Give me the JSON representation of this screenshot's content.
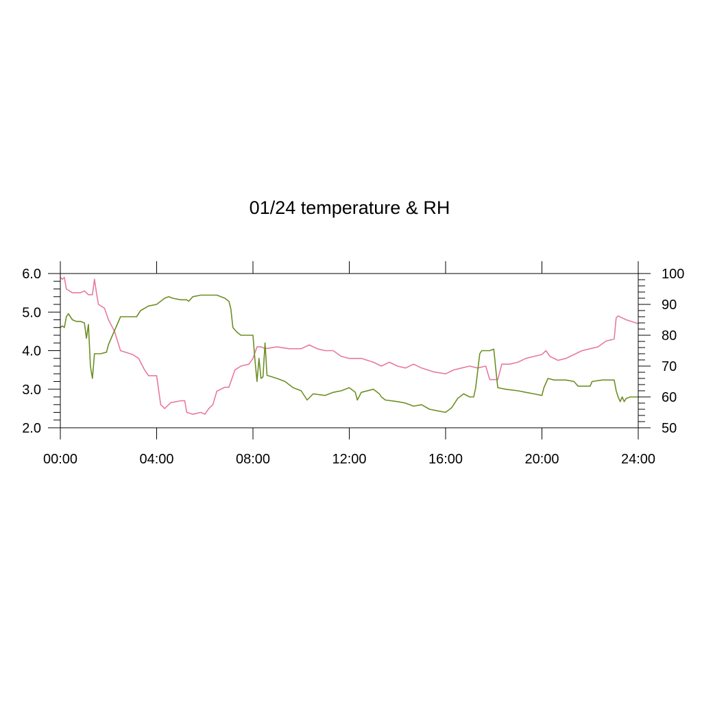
{
  "chart_data": {
    "type": "line",
    "title": "01/24 temperature & RH",
    "x_range": [
      "00:00",
      "24:00"
    ],
    "x_ticks": [
      "00:00",
      "04:00",
      "08:00",
      "12:00",
      "16:00",
      "20:00",
      "24:00"
    ],
    "y_left": {
      "range": [
        2.0,
        6.0
      ],
      "ticks": [
        "2.0",
        "3.0",
        "4.0",
        "5.0",
        "6.0"
      ]
    },
    "y_right": {
      "range": [
        50,
        100
      ],
      "ticks": [
        "50",
        "60",
        "70",
        "80",
        "90",
        "100"
      ]
    },
    "grid": false,
    "series": [
      {
        "axis": "left",
        "color": "#e8789e",
        "points": [
          [
            "00:00",
            5.9
          ],
          [
            "00:05",
            5.85
          ],
          [
            "00:10",
            5.9
          ],
          [
            "00:15",
            5.6
          ],
          [
            "00:30",
            5.5
          ],
          [
            "00:50",
            5.5
          ],
          [
            "01:00",
            5.55
          ],
          [
            "01:10",
            5.45
          ],
          [
            "01:20",
            5.45
          ],
          [
            "01:25",
            5.85
          ],
          [
            "01:30",
            5.5
          ],
          [
            "01:35",
            5.2
          ],
          [
            "01:50",
            5.1
          ],
          [
            "02:00",
            4.8
          ],
          [
            "02:15",
            4.5
          ],
          [
            "02:30",
            4.0
          ],
          [
            "02:45",
            3.95
          ],
          [
            "03:00",
            3.9
          ],
          [
            "03:15",
            3.8
          ],
          [
            "03:30",
            3.5
          ],
          [
            "03:40",
            3.35
          ],
          [
            "04:00",
            3.35
          ],
          [
            "04:10",
            2.6
          ],
          [
            "04:20",
            2.5
          ],
          [
            "04:35",
            2.65
          ],
          [
            "05:00",
            2.7
          ],
          [
            "05:10",
            2.7
          ],
          [
            "05:15",
            2.4
          ],
          [
            "05:30",
            2.35
          ],
          [
            "05:50",
            2.4
          ],
          [
            "06:00",
            2.35
          ],
          [
            "06:10",
            2.5
          ],
          [
            "06:20",
            2.6
          ],
          [
            "06:30",
            2.95
          ],
          [
            "06:50",
            3.05
          ],
          [
            "07:00",
            3.05
          ],
          [
            "07:15",
            3.5
          ],
          [
            "07:30",
            3.6
          ],
          [
            "07:50",
            3.65
          ],
          [
            "08:00",
            3.8
          ],
          [
            "08:10",
            4.1
          ],
          [
            "08:20",
            4.1
          ],
          [
            "08:30",
            4.05
          ],
          [
            "09:00",
            4.1
          ],
          [
            "09:30",
            4.05
          ],
          [
            "10:00",
            4.05
          ],
          [
            "10:20",
            4.15
          ],
          [
            "10:40",
            4.05
          ],
          [
            "11:00",
            4.0
          ],
          [
            "11:20",
            4.0
          ],
          [
            "11:40",
            3.85
          ],
          [
            "12:00",
            3.8
          ],
          [
            "12:30",
            3.8
          ],
          [
            "13:00",
            3.7
          ],
          [
            "13:20",
            3.6
          ],
          [
            "13:40",
            3.7
          ],
          [
            "14:00",
            3.6
          ],
          [
            "14:20",
            3.55
          ],
          [
            "14:40",
            3.65
          ],
          [
            "15:00",
            3.55
          ],
          [
            "15:30",
            3.45
          ],
          [
            "16:00",
            3.4
          ],
          [
            "16:20",
            3.5
          ],
          [
            "16:40",
            3.55
          ],
          [
            "17:00",
            3.6
          ],
          [
            "17:20",
            3.55
          ],
          [
            "17:40",
            3.6
          ],
          [
            "17:50",
            3.25
          ],
          [
            "18:00",
            3.25
          ],
          [
            "18:10",
            3.25
          ],
          [
            "18:20",
            3.65
          ],
          [
            "18:40",
            3.65
          ],
          [
            "19:00",
            3.7
          ],
          [
            "19:20",
            3.8
          ],
          [
            "19:40",
            3.85
          ],
          [
            "20:00",
            3.9
          ],
          [
            "20:10",
            4.0
          ],
          [
            "20:20",
            3.85
          ],
          [
            "20:40",
            3.75
          ],
          [
            "21:00",
            3.8
          ],
          [
            "21:20",
            3.9
          ],
          [
            "21:40",
            4.0
          ],
          [
            "22:00",
            4.05
          ],
          [
            "22:20",
            4.1
          ],
          [
            "22:40",
            4.25
          ],
          [
            "23:00",
            4.3
          ],
          [
            "23:05",
            4.85
          ],
          [
            "23:10",
            4.9
          ],
          [
            "23:20",
            4.85
          ],
          [
            "23:30",
            4.8
          ],
          [
            "23:45",
            4.75
          ],
          [
            "24:00",
            4.7
          ]
        ]
      },
      {
        "axis": "right",
        "color": "#6b8e23",
        "points": [
          [
            "00:00",
            82.5
          ],
          [
            "00:05",
            83.0
          ],
          [
            "00:10",
            82.5
          ],
          [
            "00:15",
            86.0
          ],
          [
            "00:20",
            87.0
          ],
          [
            "00:30",
            85.0
          ],
          [
            "00:40",
            84.5
          ],
          [
            "00:50",
            84.5
          ],
          [
            "01:00",
            84.0
          ],
          [
            "01:05",
            79.0
          ],
          [
            "01:10",
            83.5
          ],
          [
            "01:15",
            70.0
          ],
          [
            "01:20",
            66.0
          ],
          [
            "01:25",
            74.0
          ],
          [
            "01:40",
            74.0
          ],
          [
            "01:55",
            74.5
          ],
          [
            "02:00",
            77.0
          ],
          [
            "02:10",
            80.0
          ],
          [
            "02:20",
            83.0
          ],
          [
            "02:30",
            86.0
          ],
          [
            "03:00",
            86.0
          ],
          [
            "03:10",
            86.0
          ],
          [
            "03:20",
            88.0
          ],
          [
            "03:40",
            89.5
          ],
          [
            "04:00",
            90.0
          ],
          [
            "04:20",
            92.0
          ],
          [
            "04:30",
            92.5
          ],
          [
            "04:40",
            92.0
          ],
          [
            "05:00",
            91.5
          ],
          [
            "05:15",
            91.5
          ],
          [
            "05:20",
            91.0
          ],
          [
            "05:30",
            92.5
          ],
          [
            "05:50",
            93.0
          ],
          [
            "06:30",
            93.0
          ],
          [
            "06:50",
            92.0
          ],
          [
            "07:00",
            91.0
          ],
          [
            "07:05",
            88.5
          ],
          [
            "07:10",
            82.5
          ],
          [
            "07:20",
            81.0
          ],
          [
            "07:30",
            80.0
          ],
          [
            "08:00",
            80.0
          ],
          [
            "08:05",
            72.0
          ],
          [
            "08:10",
            65.0
          ],
          [
            "08:15",
            72.5
          ],
          [
            "08:20",
            66.0
          ],
          [
            "08:25",
            66.5
          ],
          [
            "08:30",
            77.5
          ],
          [
            "08:35",
            67.0
          ],
          [
            "09:00",
            66.0
          ],
          [
            "09:20",
            65.0
          ],
          [
            "09:40",
            63.0
          ],
          [
            "10:00",
            62.0
          ],
          [
            "10:15",
            59.0
          ],
          [
            "10:30",
            61.0
          ],
          [
            "11:00",
            60.5
          ],
          [
            "11:20",
            61.5
          ],
          [
            "11:40",
            62.0
          ],
          [
            "12:00",
            63.0
          ],
          [
            "12:15",
            61.5
          ],
          [
            "12:20",
            59.0
          ],
          [
            "12:30",
            61.5
          ],
          [
            "13:00",
            62.5
          ],
          [
            "13:15",
            61.0
          ],
          [
            "13:20",
            60.0
          ],
          [
            "13:30",
            59.0
          ],
          [
            "14:00",
            58.5
          ],
          [
            "14:20",
            58.0
          ],
          [
            "14:40",
            57.0
          ],
          [
            "15:00",
            57.5
          ],
          [
            "15:20",
            56.0
          ],
          [
            "15:40",
            55.5
          ],
          [
            "16:00",
            55.0
          ],
          [
            "16:15",
            56.5
          ],
          [
            "16:30",
            59.5
          ],
          [
            "16:45",
            61.0
          ],
          [
            "17:00",
            60.0
          ],
          [
            "17:10",
            60.0
          ],
          [
            "17:15",
            63.0
          ],
          [
            "17:25",
            74.0
          ],
          [
            "17:30",
            75.0
          ],
          [
            "17:50",
            75.0
          ],
          [
            "18:00",
            75.5
          ],
          [
            "18:05",
            69.0
          ],
          [
            "18:10",
            63.0
          ],
          [
            "18:30",
            62.5
          ],
          [
            "19:00",
            62.0
          ],
          [
            "19:20",
            61.5
          ],
          [
            "19:40",
            61.0
          ],
          [
            "20:00",
            60.5
          ],
          [
            "20:05",
            63.0
          ],
          [
            "20:15",
            66.0
          ],
          [
            "20:30",
            65.5
          ],
          [
            "21:00",
            65.5
          ],
          [
            "21:20",
            65.0
          ],
          [
            "21:30",
            63.5
          ],
          [
            "22:00",
            63.5
          ],
          [
            "22:05",
            65.0
          ],
          [
            "22:30",
            65.5
          ],
          [
            "22:50",
            65.5
          ],
          [
            "23:00",
            65.5
          ],
          [
            "23:05",
            62.0
          ],
          [
            "23:10",
            60.0
          ],
          [
            "23:15",
            58.5
          ],
          [
            "23:20",
            60.0
          ],
          [
            "23:25",
            58.5
          ],
          [
            "23:30",
            59.5
          ],
          [
            "23:40",
            60.0
          ],
          [
            "24:00",
            60.0
          ]
        ]
      }
    ]
  }
}
